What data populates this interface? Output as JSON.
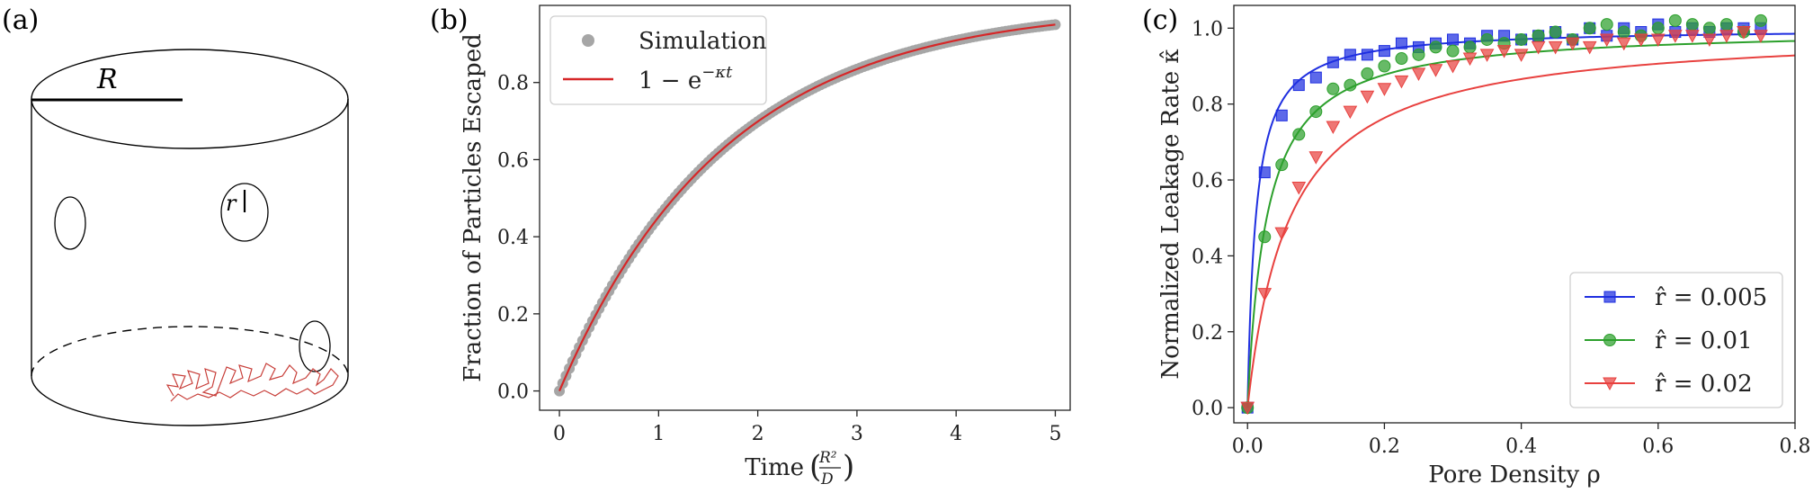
{
  "panel_labels": [
    "(a)",
    "(b)",
    "(c)"
  ],
  "diagram": {
    "radius_label": "R",
    "pore_radius_label": "r"
  },
  "colors": {
    "sim_points": "#a6a6a6",
    "fit_line": "#d62728",
    "blue": "#1f2fe0",
    "green": "#2ca02c",
    "red": "#e8413f",
    "walk": "#c8403b"
  },
  "chart_data": [
    {
      "type": "line",
      "panel": "(b)",
      "xlabel": "Time",
      "xlabel_unit": "(R²/D)",
      "ylabel": "Fraction of Particles Escaped",
      "xlim": [
        -0.2,
        5.15
      ],
      "ylim": [
        -0.05,
        1.0
      ],
      "xticks": [
        0,
        1,
        2,
        3,
        4,
        5
      ],
      "yticks": [
        0.0,
        0.2,
        0.4,
        0.6,
        0.8
      ],
      "ytick_labels": [
        "0.0",
        "0.2",
        "0.4",
        "0.6",
        "0.8"
      ],
      "kappa": 0.6,
      "legend_position": "top-left",
      "series": [
        {
          "name": "Simulation",
          "kind": "points",
          "x_range": [
            0,
            5
          ],
          "formula": "1 - exp(-0.6 t)"
        },
        {
          "name": "1 − e^(−κt)",
          "kind": "line",
          "x_range": [
            0,
            5
          ],
          "formula": "1 - exp(-0.6 t)"
        }
      ],
      "legend": [
        {
          "label": "Simulation",
          "type": "marker"
        },
        {
          "label_main": "1 − e",
          "label_sup": "−κt",
          "type": "line"
        }
      ]
    },
    {
      "type": "scatter",
      "panel": "(c)",
      "xlabel": "Pore Density ρ",
      "ylabel": "Normalized Leakage Rate κ̂",
      "xlim": [
        -0.02,
        0.8
      ],
      "ylim": [
        -0.04,
        1.06
      ],
      "xticks": [
        0.0,
        0.2,
        0.4,
        0.6,
        0.8
      ],
      "yticks": [
        0.0,
        0.2,
        0.4,
        0.6,
        0.8,
        1.0
      ],
      "xtick_labels": [
        "0.0",
        "0.2",
        "0.4",
        "0.6",
        "0.8"
      ],
      "ytick_labels": [
        "0.0",
        "0.2",
        "0.4",
        "0.6",
        "0.8",
        "1.0"
      ],
      "legend_position": "bottom-right",
      "series": [
        {
          "name": "r̂ = 0.005",
          "marker": "square",
          "color": "#1f2fe0",
          "fit_a": 0.012,
          "x": [
            0.0,
            0.025,
            0.05,
            0.075,
            0.1,
            0.125,
            0.15,
            0.175,
            0.2,
            0.225,
            0.25,
            0.275,
            0.3,
            0.325,
            0.35,
            0.375,
            0.4,
            0.425,
            0.45,
            0.475,
            0.5,
            0.525,
            0.55,
            0.575,
            0.6,
            0.625,
            0.65,
            0.675,
            0.7,
            0.725,
            0.75
          ],
          "y": [
            0.0,
            0.62,
            0.77,
            0.85,
            0.87,
            0.91,
            0.93,
            0.93,
            0.94,
            0.96,
            0.95,
            0.96,
            0.97,
            0.96,
            0.98,
            0.98,
            0.97,
            0.98,
            0.99,
            0.97,
            1.0,
            0.98,
            1.0,
            0.99,
            1.01,
            0.99,
            1.0,
            0.99,
            1.0,
            1.0,
            1.0
          ]
        },
        {
          "name": "r̂ = 0.01",
          "marker": "circle",
          "color": "#2ca02c",
          "fit_a": 0.028,
          "x": [
            0.0,
            0.025,
            0.05,
            0.075,
            0.1,
            0.125,
            0.15,
            0.175,
            0.2,
            0.225,
            0.25,
            0.275,
            0.3,
            0.325,
            0.35,
            0.375,
            0.4,
            0.425,
            0.45,
            0.475,
            0.5,
            0.525,
            0.55,
            0.575,
            0.6,
            0.625,
            0.65,
            0.675,
            0.7,
            0.725,
            0.75
          ],
          "y": [
            0.0,
            0.45,
            0.64,
            0.72,
            0.78,
            0.84,
            0.85,
            0.88,
            0.9,
            0.92,
            0.93,
            0.95,
            0.94,
            0.95,
            0.97,
            0.96,
            0.97,
            0.98,
            0.99,
            0.97,
            1.0,
            1.01,
            0.99,
            0.98,
            1.0,
            1.02,
            1.01,
            1.0,
            1.01,
            0.99,
            1.02
          ]
        },
        {
          "name": "r̂ = 0.02",
          "marker": "triangle-down",
          "color": "#e8413f",
          "fit_a": 0.062,
          "x": [
            0.0,
            0.025,
            0.05,
            0.075,
            0.1,
            0.125,
            0.15,
            0.175,
            0.2,
            0.225,
            0.25,
            0.275,
            0.3,
            0.325,
            0.35,
            0.375,
            0.4,
            0.425,
            0.45,
            0.475,
            0.5,
            0.525,
            0.55,
            0.575,
            0.6,
            0.625,
            0.65,
            0.675,
            0.7,
            0.725,
            0.75
          ],
          "y": [
            0.0,
            0.3,
            0.46,
            0.58,
            0.66,
            0.74,
            0.78,
            0.82,
            0.84,
            0.86,
            0.88,
            0.89,
            0.9,
            0.92,
            0.93,
            0.94,
            0.93,
            0.95,
            0.95,
            0.96,
            0.95,
            0.97,
            0.96,
            0.97,
            0.97,
            0.98,
            0.98,
            0.97,
            0.98,
            0.99,
            0.98
          ]
        }
      ]
    }
  ]
}
